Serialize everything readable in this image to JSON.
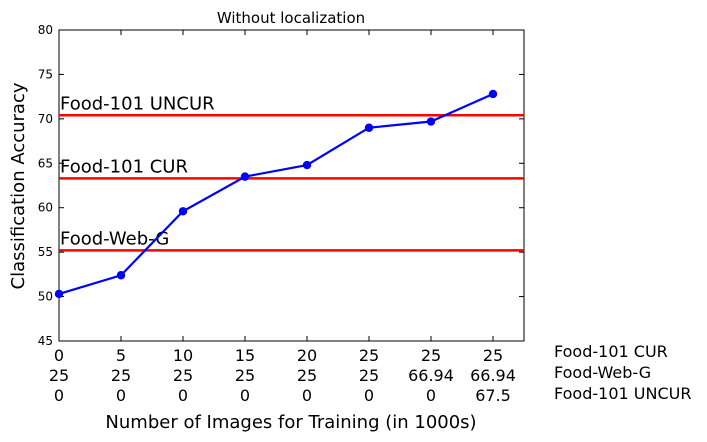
{
  "chart_data": {
    "type": "line",
    "title": "Without localization",
    "xlabel": "Number of Images for Training (in 1000s)",
    "ylabel": "Classification Accuracy",
    "ylim": [
      45,
      80
    ],
    "yticks": [
      45,
      50,
      55,
      60,
      65,
      70,
      75,
      80
    ],
    "grid": false,
    "x_tick_rows": [
      [
        "0",
        "5",
        "10",
        "15",
        "20",
        "25",
        "25",
        "25"
      ],
      [
        "25",
        "25",
        "25",
        "25",
        "25",
        "25",
        "66.94",
        "66.94"
      ],
      [
        "0",
        "0",
        "0",
        "0",
        "0",
        "0",
        "0",
        "67.5"
      ]
    ],
    "x_row_labels": [
      "Food-101 CUR",
      "Food-Web-G",
      "Food-101 UNCUR"
    ],
    "series": [
      {
        "values": [
          50.3,
          52.4,
          59.6,
          63.5,
          64.8,
          69.0,
          69.7,
          72.8
        ],
        "color": "#0000ff"
      }
    ],
    "reference_lines": [
      {
        "label": "Food-101 UNCUR",
        "value": 70.4,
        "color": "#ff0000"
      },
      {
        "label": "Food-101 CUR",
        "value": 63.3,
        "color": "#ff0000"
      },
      {
        "label": "Food-Web-G",
        "value": 55.2,
        "color": "#ff0000"
      }
    ]
  }
}
